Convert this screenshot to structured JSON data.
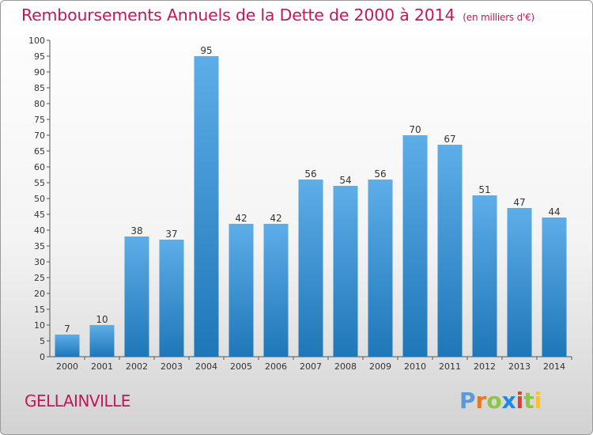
{
  "title": "Remboursements Annuels de la Dette de 2000 à 2014",
  "unit": "(en milliers d'€)",
  "commune": "GELLAINVILLE",
  "logo": {
    "letters": [
      "P",
      "r",
      "o",
      "x",
      "i",
      "t",
      "i"
    ],
    "colors": [
      "#5b9bd5",
      "#e87722",
      "#8dc63f",
      "#1e88e5",
      "#e53935",
      "#8dc63f",
      "#fbc02d"
    ]
  },
  "colors": {
    "bar_top": "#5dade8",
    "bar_bottom": "#1f77b8",
    "title": "#c2185b"
  },
  "chart_data": {
    "type": "bar",
    "categories": [
      "2000",
      "2001",
      "2002",
      "2003",
      "2004",
      "2005",
      "2006",
      "2007",
      "2008",
      "2009",
      "2010",
      "2011",
      "2012",
      "2013",
      "2014"
    ],
    "values": [
      7,
      10,
      38,
      37,
      95,
      42,
      42,
      56,
      54,
      56,
      70,
      67,
      51,
      47,
      44
    ],
    "title": "Remboursements Annuels de la Dette de 2000 à 2014",
    "xlabel": "",
    "ylabel": "",
    "ylim": [
      0,
      100
    ],
    "yticks": [
      0,
      5,
      10,
      15,
      20,
      25,
      30,
      35,
      40,
      45,
      50,
      55,
      60,
      65,
      70,
      75,
      80,
      85,
      90,
      95,
      100
    ],
    "grid": false,
    "legend": "none"
  }
}
